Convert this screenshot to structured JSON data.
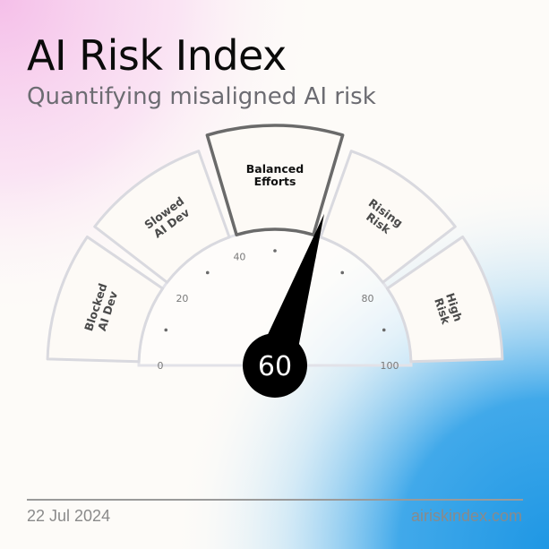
{
  "header": {
    "title": "AI Risk Index",
    "subtitle": "Quantifying misaligned AI risk"
  },
  "gauge": {
    "value": 60,
    "value_label": "60",
    "min": 0,
    "max": 100,
    "ticks": [
      {
        "value": 0,
        "label": "0"
      },
      {
        "value": 20,
        "label": "20"
      },
      {
        "value": 40,
        "label": "40"
      },
      {
        "value": 60,
        "label": "60"
      },
      {
        "value": 80,
        "label": "80"
      },
      {
        "value": 100,
        "label": "100"
      }
    ],
    "minor_ticks": [
      10,
      30,
      50,
      70,
      90
    ],
    "segments": [
      {
        "lines": [
          "Blocked",
          "AI Dev"
        ],
        "active": false
      },
      {
        "lines": [
          "Slowed",
          "AI Dev"
        ],
        "active": false
      },
      {
        "lines": [
          "Balanced",
          "Efforts"
        ],
        "active": true
      },
      {
        "lines": [
          "Rising",
          "Risk"
        ],
        "active": false
      },
      {
        "lines": [
          "High",
          "Risk"
        ],
        "active": false
      }
    ]
  },
  "footer": {
    "date": "22 Jul 2024",
    "site": "airiskindex.com"
  },
  "colors": {
    "segment_fill": "#fdfaf6",
    "segment_border": "#d9d9df",
    "active_border": "#6a6a6a",
    "needle": "#000000",
    "hub_text": "#ffffff",
    "pink": "#f7c6ec",
    "blue": "#2fa0e6"
  }
}
